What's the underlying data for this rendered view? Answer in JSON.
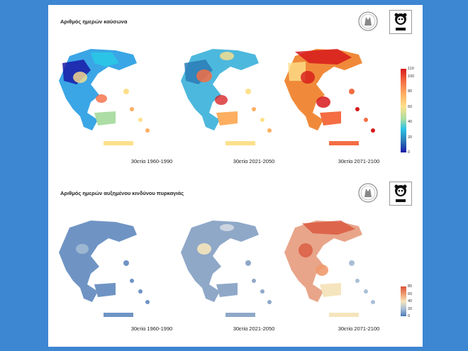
{
  "panels": [
    {
      "title": "Αριθμός ημερών καύσωνα",
      "captions": [
        "30ετία 1960-1990",
        "30ετία 2021-2050",
        "30ετία 2071-2100"
      ],
      "legend": {
        "ticks": [
          "110",
          "100",
          "80",
          "60",
          "40",
          "20",
          "0"
        ],
        "tick_values": [
          110,
          100,
          80,
          60,
          40,
          20,
          0
        ],
        "range": [
          0,
          110
        ],
        "colors": [
          "#d7191c",
          "#f46d43",
          "#fdae61",
          "#fee08b",
          "#abdda4",
          "#2bc4e6",
          "#2c7bb6",
          "#1a1aa8"
        ]
      },
      "map_mean_colors": [
        "#3aa6e6",
        "#4db8dd",
        "#f08a3a"
      ]
    },
    {
      "title": "Αριθμός ημερών αυξημένου κινδύνου πυρκαγιάς",
      "captions": [
        "30ετία 1960-1990",
        "30ετία 2021-2050",
        "30ετία 2071-2100"
      ],
      "legend": {
        "ticks": [
          "80",
          "60",
          "40",
          "20",
          "0"
        ],
        "tick_values": [
          80,
          60,
          40,
          20,
          0
        ],
        "range": [
          0,
          80
        ],
        "colors": [
          "#d9553b",
          "#ef9a6e",
          "#f5e4bd",
          "#a9bfd6",
          "#4a7ab8"
        ]
      },
      "map_mean_colors": [
        "#6f94c4",
        "#8fa8c8",
        "#e8a58a"
      ]
    }
  ],
  "logos": {
    "seal": "academy-seal-icon",
    "wwf": "wwf-panda-logo-icon"
  }
}
